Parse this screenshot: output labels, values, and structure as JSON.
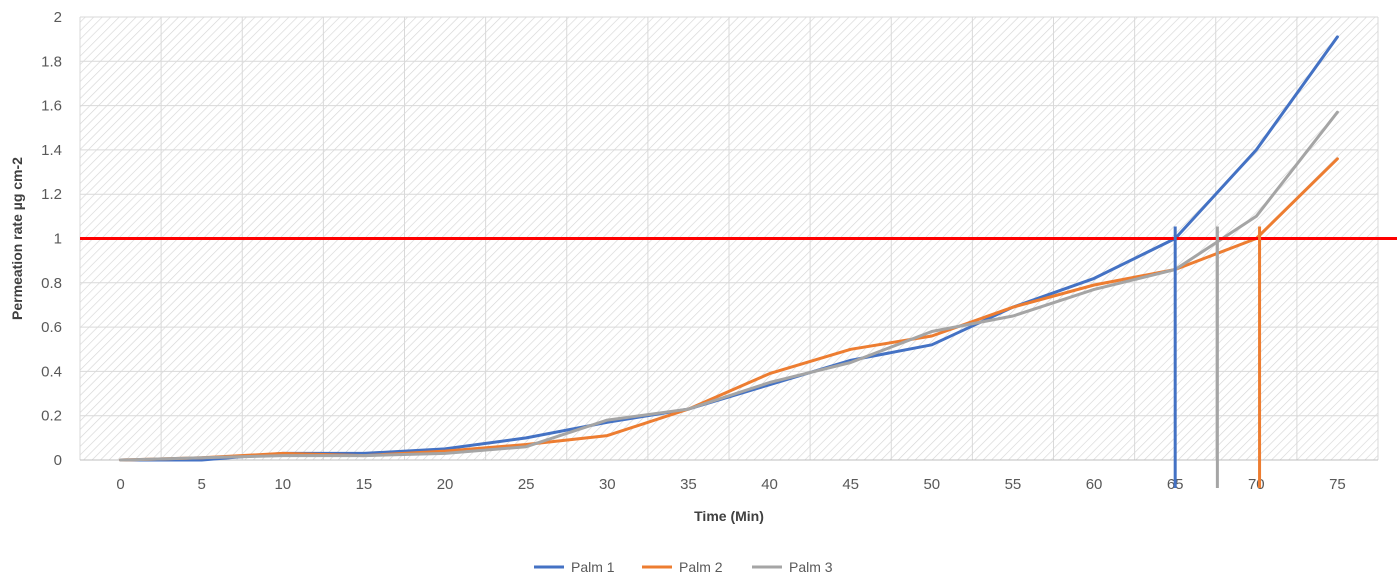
{
  "chart_data": {
    "type": "line",
    "xlabel": "Time (Min)",
    "ylabel": "Permeation rate µg cm-2",
    "x": [
      0,
      5,
      10,
      15,
      20,
      25,
      30,
      35,
      40,
      45,
      50,
      55,
      60,
      65,
      70,
      75
    ],
    "xlim": [
      0,
      75
    ],
    "ylim": [
      0,
      2
    ],
    "yticks": [
      "0",
      "0.2",
      "0.4",
      "0.6",
      "0.8",
      "1",
      "1.2",
      "1.4",
      "1.6",
      "1.8",
      "2"
    ],
    "xticks": [
      "0",
      "5",
      "10",
      "15",
      "20",
      "25",
      "30",
      "35",
      "40",
      "45",
      "50",
      "55",
      "60",
      "65",
      "70",
      "75"
    ],
    "grid": true,
    "legend_position": "bottom",
    "series": [
      {
        "name": "Palm 1",
        "color": "#4472C4",
        "values": [
          0.0,
          0.0,
          0.03,
          0.03,
          0.05,
          0.1,
          0.17,
          0.23,
          0.34,
          0.45,
          0.52,
          0.69,
          0.82,
          1.0,
          1.4,
          1.91
        ]
      },
      {
        "name": "Palm 2",
        "color": "#ED7D31",
        "values": [
          0.0,
          0.01,
          0.03,
          0.02,
          0.04,
          0.07,
          0.11,
          0.23,
          0.39,
          0.5,
          0.56,
          0.69,
          0.79,
          0.86,
          1.0,
          1.36
        ]
      },
      {
        "name": "Palm 3",
        "color": "#A5A5A5",
        "values": [
          0.0,
          0.01,
          0.02,
          0.02,
          0.03,
          0.06,
          0.18,
          0.23,
          0.35,
          0.44,
          0.58,
          0.65,
          0.77,
          0.86,
          1.1,
          1.57
        ]
      }
    ],
    "annotations": {
      "threshold": {
        "y": 1.0,
        "color": "#FF0000"
      },
      "crossings": [
        {
          "series": "Palm 1",
          "x": 65.0,
          "color": "#4472C4"
        },
        {
          "series": "Palm 3",
          "x": 67.6,
          "color": "#A5A5A5"
        },
        {
          "series": "Palm 2",
          "x": 70.2,
          "color": "#ED7D31"
        }
      ]
    }
  }
}
